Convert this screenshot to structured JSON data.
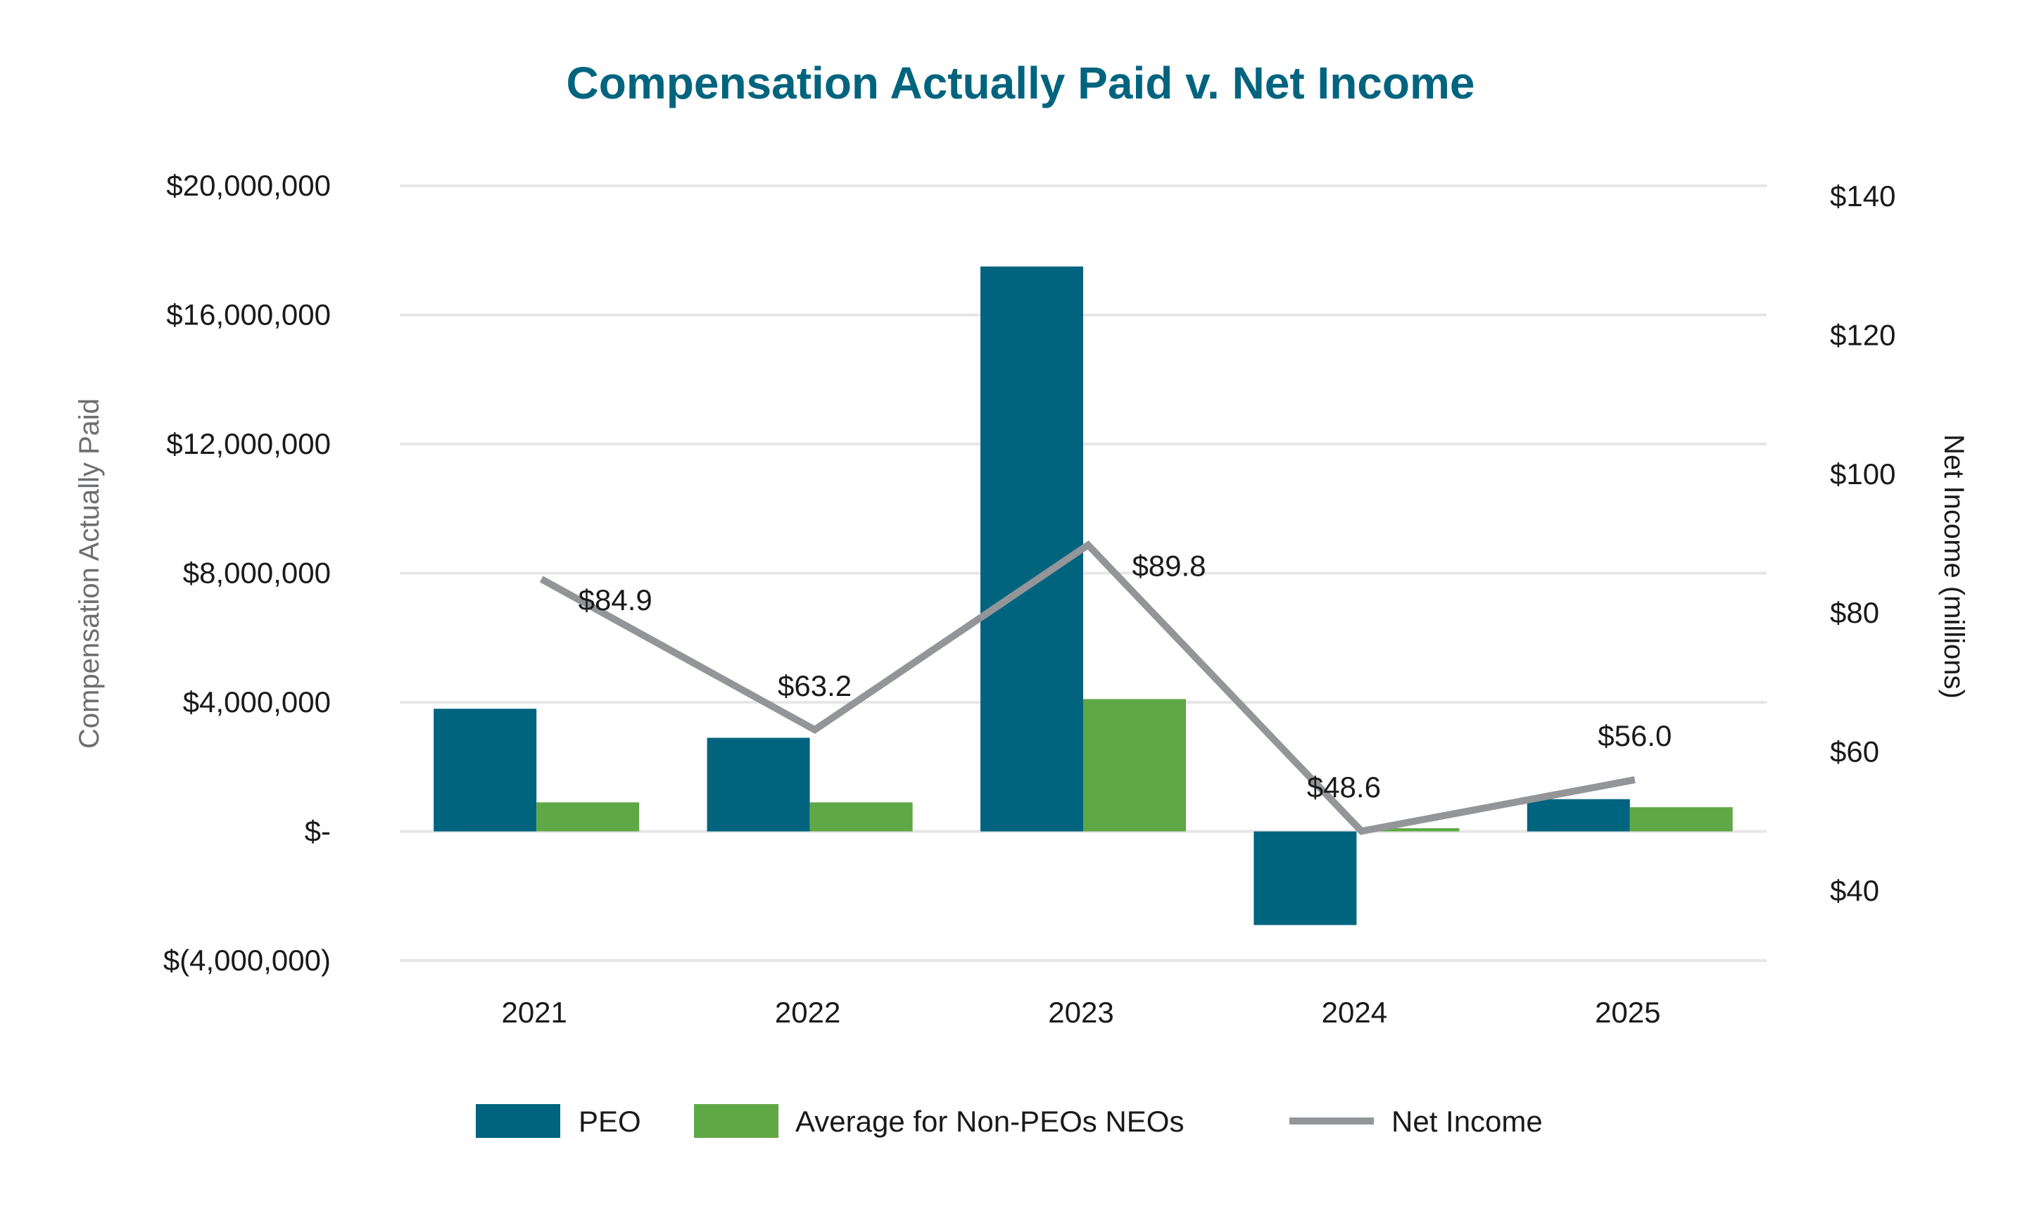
{
  "chart_data": {
    "type": "bar",
    "title": "Compensation Actually Paid v. Net Income",
    "categories": [
      "2021",
      "2022",
      "2023",
      "2024",
      "2025"
    ],
    "ylabel": "Compensation Actually Paid",
    "y2label": "Net Income (millions)",
    "ylim": [
      -4000000,
      20000000
    ],
    "y_ticks": [
      -4000000,
      0,
      4000000,
      8000000,
      12000000,
      16000000,
      20000000
    ],
    "y_tick_labels": [
      "$(4,000,000)",
      "$-",
      "$4,000,000",
      "$8,000,000",
      "$12,000,000",
      "$16,000,000",
      "$20,000,000"
    ],
    "y2lim": [
      28,
      142
    ],
    "y2_ticks": [
      40,
      60,
      80,
      100,
      120,
      140
    ],
    "y2_tick_labels": [
      "$40",
      "$60",
      "$80",
      "$100",
      "$120",
      "$140"
    ],
    "grid": true,
    "legend_position": "bottom",
    "series": [
      {
        "name": "PEO",
        "type": "bar",
        "axis": "left",
        "color": "#00647f",
        "values": [
          3800000,
          2900000,
          17500000,
          -2900000,
          1000000
        ]
      },
      {
        "name": "Average for Non-PEOs NEOs",
        "type": "bar",
        "axis": "left",
        "color": "#60a845",
        "values": [
          900000,
          900000,
          4100000,
          100000,
          750000
        ]
      },
      {
        "name": "Net Income",
        "type": "line",
        "axis": "right",
        "color": "#939598",
        "values": [
          84.9,
          63.2,
          89.8,
          48.6,
          56.0
        ],
        "labels": [
          "$84.9",
          "$63.2",
          "$89.8",
          "$48.6",
          "$56.0"
        ]
      }
    ],
    "colors": {
      "title": "#00647f",
      "axis_label": "#6d6e71",
      "grid": "#e6e6e6"
    }
  }
}
